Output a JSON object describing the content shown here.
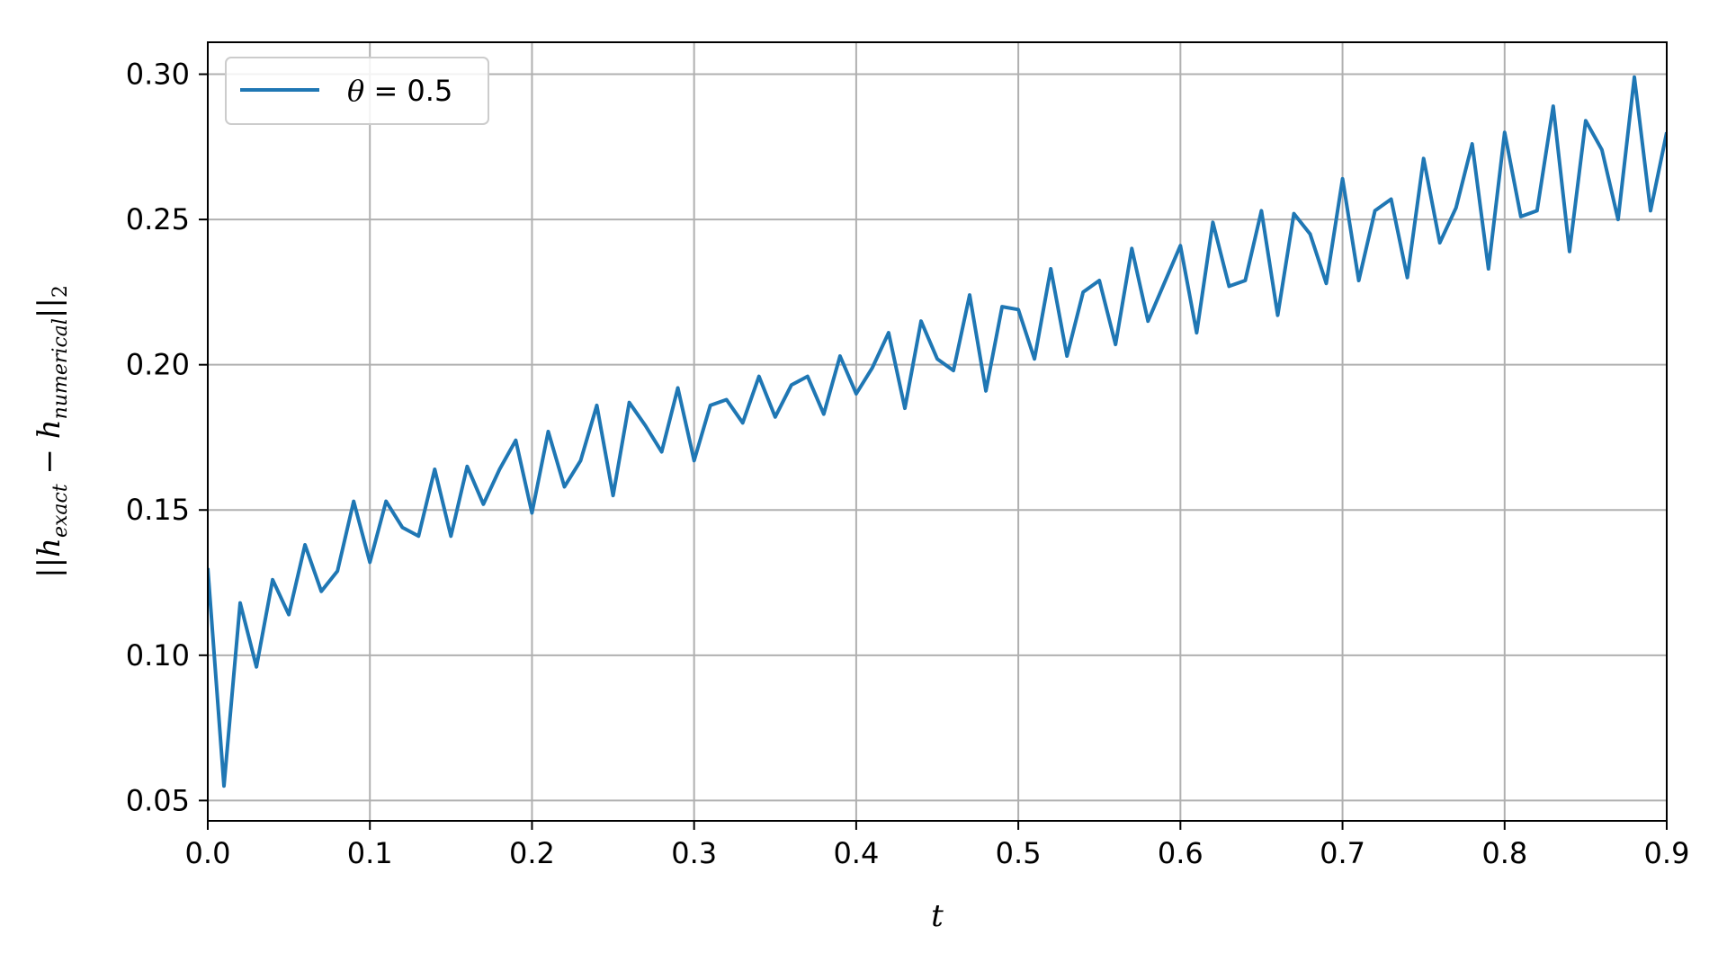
{
  "chart_data": {
    "type": "line",
    "title": "",
    "xlabel": "t",
    "ylabel": {
      "prefix": "||h",
      "sub1": "exact",
      "mid": " − h",
      "sub2": "numerical",
      "suffix": "||",
      "sub3": "2"
    },
    "xlim": [
      0.0,
      0.9
    ],
    "ylim": [
      0.043,
      0.311
    ],
    "xticks": [
      0.0,
      0.1,
      0.2,
      0.3,
      0.4,
      0.5,
      0.6,
      0.7,
      0.8,
      0.9
    ],
    "xtick_labels": [
      "0.0",
      "0.1",
      "0.2",
      "0.3",
      "0.4",
      "0.5",
      "0.6",
      "0.7",
      "0.8",
      "0.9"
    ],
    "yticks": [
      0.05,
      0.1,
      0.15,
      0.2,
      0.25,
      0.3
    ],
    "ytick_labels": [
      "0.05",
      "0.10",
      "0.15",
      "0.20",
      "0.25",
      "0.30"
    ],
    "grid": true,
    "legend_position": "top-left",
    "series": [
      {
        "legend": {
          "symbol": "θ",
          "rest": " = 0.5"
        },
        "color": "#1f77b4",
        "x": [
          0.0,
          0.01,
          0.02,
          0.03,
          0.04,
          0.05,
          0.06,
          0.07,
          0.08,
          0.09,
          0.1,
          0.11,
          0.12,
          0.13,
          0.14,
          0.15,
          0.16,
          0.17,
          0.18,
          0.19,
          0.2,
          0.21,
          0.22,
          0.23,
          0.24,
          0.25,
          0.26,
          0.27,
          0.28,
          0.29,
          0.3,
          0.31,
          0.32,
          0.33,
          0.34,
          0.35,
          0.36,
          0.37,
          0.38,
          0.39,
          0.4,
          0.41,
          0.42,
          0.43,
          0.44,
          0.45,
          0.46,
          0.47,
          0.48,
          0.49,
          0.5,
          0.51,
          0.52,
          0.53,
          0.54,
          0.55,
          0.56,
          0.57,
          0.58,
          0.59,
          0.6,
          0.61,
          0.62,
          0.63,
          0.64,
          0.65,
          0.66,
          0.67,
          0.68,
          0.69,
          0.7,
          0.71,
          0.72,
          0.73,
          0.74,
          0.75,
          0.76,
          0.77,
          0.78,
          0.79,
          0.8,
          0.81,
          0.82,
          0.83,
          0.84,
          0.85,
          0.86,
          0.87,
          0.88,
          0.89,
          0.9
        ],
        "y": [
          0.13,
          0.055,
          0.118,
          0.096,
          0.126,
          0.114,
          0.138,
          0.122,
          0.129,
          0.153,
          0.132,
          0.153,
          0.144,
          0.141,
          0.164,
          0.141,
          0.165,
          0.152,
          0.164,
          0.174,
          0.149,
          0.177,
          0.158,
          0.167,
          0.186,
          0.155,
          0.187,
          0.179,
          0.17,
          0.192,
          0.167,
          0.186,
          0.188,
          0.18,
          0.196,
          0.182,
          0.193,
          0.196,
          0.183,
          0.203,
          0.19,
          0.199,
          0.211,
          0.185,
          0.215,
          0.202,
          0.198,
          0.224,
          0.191,
          0.22,
          0.219,
          0.202,
          0.233,
          0.203,
          0.225,
          0.229,
          0.207,
          0.24,
          0.215,
          0.228,
          0.241,
          0.211,
          0.249,
          0.227,
          0.229,
          0.253,
          0.217,
          0.252,
          0.245,
          0.228,
          0.264,
          0.229,
          0.253,
          0.257,
          0.23,
          0.271,
          0.242,
          0.254,
          0.276,
          0.233,
          0.28,
          0.251,
          0.253,
          0.289,
          0.239,
          0.284,
          0.274,
          0.25,
          0.299,
          0.253,
          0.28
        ]
      }
    ]
  }
}
